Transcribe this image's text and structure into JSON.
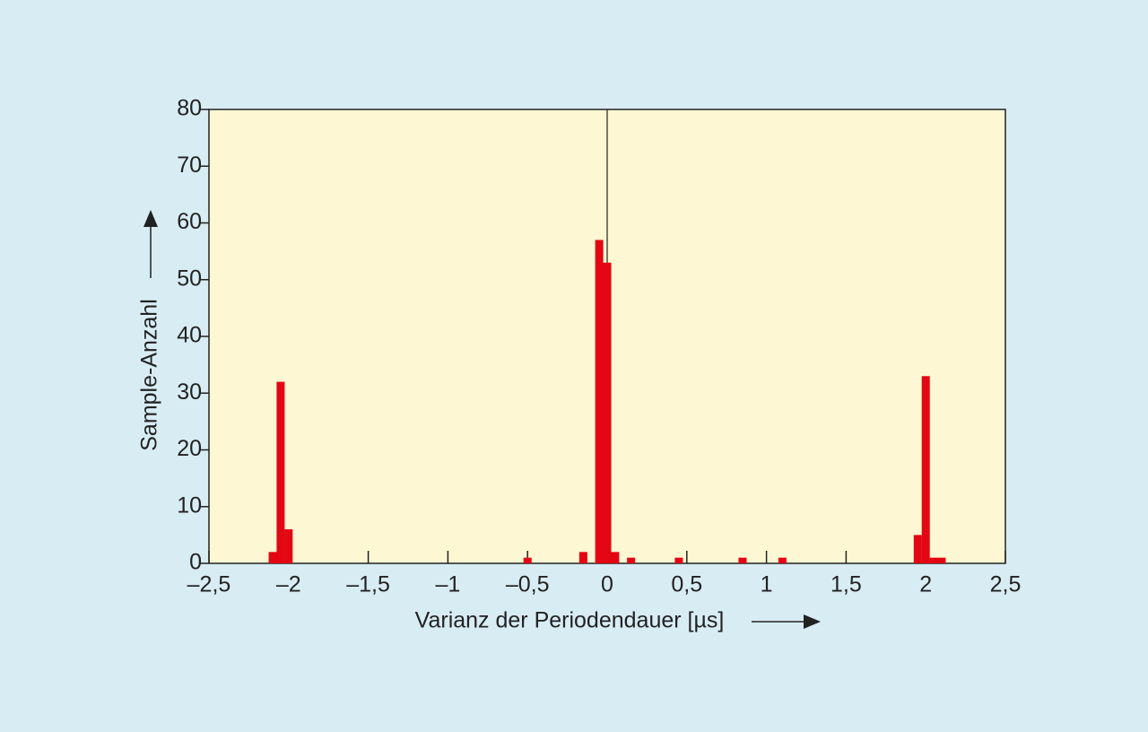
{
  "chart_data": {
    "type": "bar",
    "x_label": "Varianz der Periodendauer [µs]",
    "y_label": "Sample-Anzahl",
    "x": [
      -2.1,
      -2.05,
      -2.0,
      -0.5,
      -0.15,
      -0.05,
      0,
      0.05,
      0.15,
      0.45,
      0.85,
      1.1,
      1.95,
      2.0,
      2.05,
      2.1
    ],
    "values": [
      2,
      32,
      6,
      1,
      2,
      57,
      53,
      2,
      1,
      1,
      1,
      1,
      5,
      33,
      1,
      1
    ],
    "color": "#e30613",
    "xlim": [
      -2.5,
      2.5
    ],
    "xticks": [
      {
        "value": -2.5,
        "label": "–2,5"
      },
      {
        "value": -2,
        "label": "–2"
      },
      {
        "value": -1.5,
        "label": "–1,5"
      },
      {
        "value": -1,
        "label": "–1"
      },
      {
        "value": -0.5,
        "label": "–0,5"
      },
      0,
      {
        "value": 0.5,
        "label": "0,5"
      },
      1,
      {
        "value": 1.5,
        "label": "1,5"
      },
      2,
      {
        "value": 2.5,
        "label": "2,5"
      }
    ],
    "ylim": [
      0,
      80
    ],
    "yticks": [
      0,
      10,
      20,
      30,
      40,
      50,
      60,
      70,
      80
    ],
    "grid": false
  }
}
